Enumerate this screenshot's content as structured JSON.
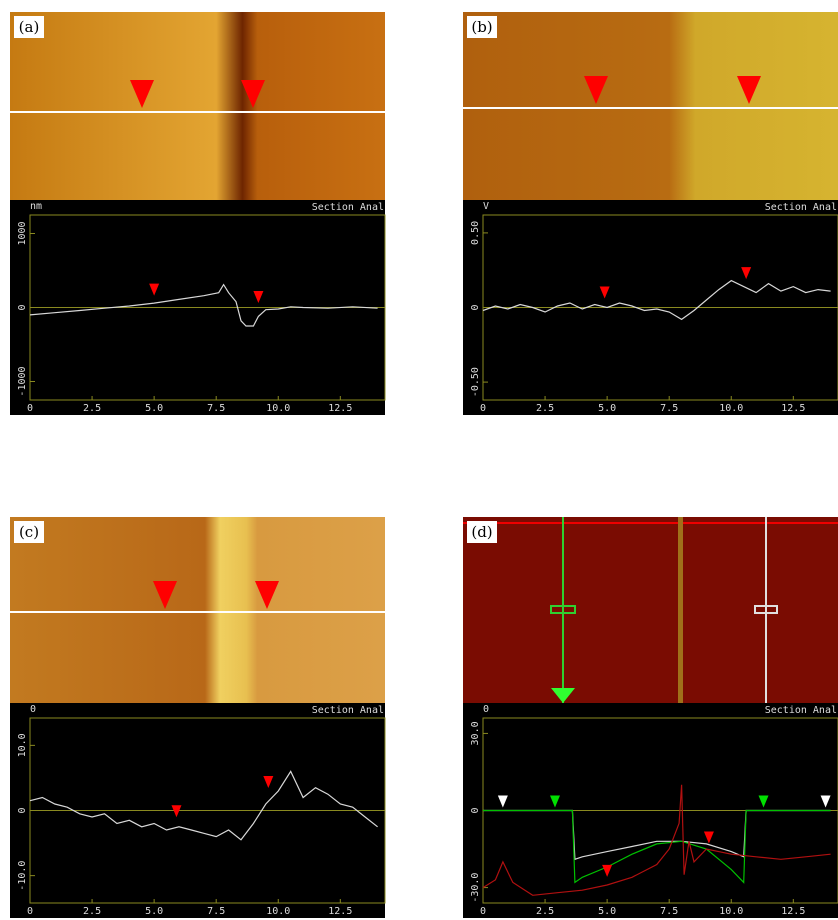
{
  "chart_data": [
    {
      "type": "line",
      "label": "(a)",
      "unit": "nm",
      "header": "Section Anal",
      "xlim": [
        0,
        14.3
      ],
      "ylim": [
        -1250,
        1250
      ],
      "xticks": [
        0,
        2.5,
        {
          "value": 5,
          "label": "5.0"
        },
        7.5,
        {
          "value": 10,
          "label": "10.0"
        },
        12.5
      ],
      "yticks": [
        -1000,
        0,
        1000
      ],
      "series": [
        {
          "color": "#d8d8d8",
          "x": [
            0,
            1,
            2,
            3,
            4,
            5,
            6,
            7,
            7.6,
            7.8,
            8.0,
            8.3,
            8.5,
            8.7,
            9.0,
            9.2,
            9.5,
            10,
            10.5,
            11,
            12,
            13,
            14
          ],
          "values": [
            -100,
            -70,
            -40,
            -10,
            20,
            60,
            110,
            160,
            200,
            310,
            200,
            80,
            -180,
            -250,
            -250,
            -120,
            -30,
            -20,
            10,
            0,
            -10,
            10,
            -10
          ]
        }
      ],
      "markers": [
        {
          "x": 5.0,
          "y": 120,
          "color": "#ff0000"
        },
        {
          "x": 9.2,
          "y": 20,
          "color": "#ff0000"
        }
      ]
    },
    {
      "type": "line",
      "label": "(b)",
      "unit": "V",
      "header": "Section Anal",
      "xlim": [
        0,
        14.3
      ],
      "ylim": [
        -0.62,
        0.62
      ],
      "xticks": [
        0,
        2.5,
        {
          "value": 5,
          "label": "5.0"
        },
        7.5,
        {
          "value": 10,
          "label": "10.0"
        },
        12.5
      ],
      "yticks": [
        {
          "value": -0.5,
          "label": "-0.50"
        },
        0,
        {
          "value": 0.5,
          "label": "0.50"
        }
      ],
      "series": [
        {
          "color": "#d8d8d8",
          "x": [
            0,
            0.5,
            1,
            1.5,
            2,
            2.5,
            3,
            3.5,
            4,
            4.5,
            5,
            5.5,
            6,
            6.5,
            7,
            7.5,
            8,
            8.5,
            9,
            9.5,
            10,
            10.5,
            11,
            11.5,
            12,
            12.5,
            13,
            13.5,
            14
          ],
          "values": [
            -0.02,
            0.01,
            -0.01,
            0.02,
            0,
            -0.03,
            0.01,
            0.03,
            -0.01,
            0.02,
            0,
            0.03,
            0.01,
            -0.02,
            -0.01,
            -0.03,
            -0.08,
            -0.02,
            0.05,
            0.12,
            0.18,
            0.14,
            0.1,
            0.16,
            0.11,
            0.14,
            0.1,
            0.12,
            0.11
          ]
        }
      ],
      "markers": [
        {
          "x": 4.9,
          "y": 0.04,
          "color": "#ff0000"
        },
        {
          "x": 10.6,
          "y": 0.17,
          "color": "#ff0000"
        }
      ]
    },
    {
      "type": "line",
      "label": "(c)",
      "unit": "0",
      "header": "Section Anal",
      "xlim": [
        0,
        14.3
      ],
      "ylim": [
        -14.2,
        14.2
      ],
      "xticks": [
        0,
        2.5,
        {
          "value": 5,
          "label": "5.0"
        },
        7.5,
        {
          "value": 10,
          "label": "10.0"
        },
        12.5
      ],
      "yticks": [
        {
          "value": -10,
          "label": "-10.0"
        },
        0,
        {
          "value": 10,
          "label": "10.0"
        }
      ],
      "series": [
        {
          "color": "#d8d8d8",
          "x": [
            0,
            0.5,
            1,
            1.5,
            2,
            2.5,
            3,
            3.5,
            4,
            4.5,
            5,
            5.5,
            6,
            6.5,
            7,
            7.5,
            8,
            8.5,
            9,
            9.5,
            10,
            10.5,
            11,
            11.5,
            12,
            12.5,
            13,
            13.5,
            14
          ],
          "values": [
            1.5,
            2,
            1,
            0.5,
            -0.5,
            -1,
            -0.5,
            -2,
            -1.5,
            -2.5,
            -2,
            -3,
            -2.5,
            -3,
            -3.5,
            -4,
            -3,
            -4.5,
            -2,
            1,
            3,
            6,
            2,
            3.5,
            2.5,
            1,
            0.5,
            -1,
            -2.5
          ]
        }
      ],
      "markers": [
        {
          "x": 5.9,
          "y": -1.5,
          "color": "#ff0000"
        },
        {
          "x": 9.6,
          "y": 3,
          "color": "#ff0000"
        }
      ]
    },
    {
      "type": "line",
      "label": "(d)",
      "unit": "0",
      "header": "Section Anal",
      "xlim": [
        0,
        14.3
      ],
      "ylim": [
        -36,
        36
      ],
      "xticks": [
        0,
        2.5,
        {
          "value": 5,
          "label": "5.0"
        },
        7.5,
        {
          "value": 10,
          "label": "10.0"
        },
        12.5
      ],
      "yticks": [
        {
          "value": -30,
          "label": "-30.0"
        },
        0,
        {
          "value": 30,
          "label": "30.0"
        }
      ],
      "series": [
        {
          "color": "#d8d8d8",
          "x": [
            0,
            0.8,
            1.5,
            2.5,
            3,
            3.6,
            3.7,
            4,
            5,
            6,
            7,
            8,
            9,
            10,
            10.5,
            10.6,
            11,
            12,
            13,
            14
          ],
          "values": [
            0,
            0,
            0,
            0,
            0,
            0,
            -19,
            -18,
            -16,
            -14,
            -12,
            -12,
            -13,
            -16,
            -18,
            0,
            0,
            0,
            0,
            0
          ]
        },
        {
          "color": "#00c000",
          "x": [
            0,
            0.8,
            1.5,
            2.5,
            3,
            3.6,
            3.7,
            4,
            5,
            6,
            7,
            8,
            9,
            10,
            10.5,
            10.6,
            11,
            12,
            13,
            14
          ],
          "values": [
            0,
            0,
            0,
            0,
            0,
            0,
            -28,
            -26,
            -22,
            -17,
            -13,
            -12,
            -15,
            -23,
            -28,
            0,
            0,
            0,
            0,
            0
          ]
        },
        {
          "color": "#b01010",
          "x": [
            0,
            0.5,
            0.8,
            1.2,
            2,
            3,
            4,
            5,
            6,
            7,
            7.5,
            7.9,
            8.0,
            8.1,
            8.3,
            8.5,
            9,
            10,
            11,
            12,
            13,
            14
          ],
          "values": [
            -30,
            -27,
            -20,
            -28,
            -33,
            -32,
            -31,
            -29,
            -26,
            -21,
            -15,
            -5,
            10,
            -25,
            -12,
            -20,
            -15,
            -17,
            -18,
            -19,
            -18,
            -17
          ]
        }
      ],
      "markers": [
        {
          "x": 0.8,
          "y": 0,
          "color": "#ffffff"
        },
        {
          "x": 2.9,
          "y": 0,
          "color": "#00e000"
        },
        {
          "x": 11.3,
          "y": 0,
          "color": "#00e000"
        },
        {
          "x": 13.8,
          "y": 0,
          "color": "#ffffff"
        },
        {
          "x": 5.0,
          "y": -27,
          "color": "#ff0000"
        },
        {
          "x": 9.1,
          "y": -14,
          "color": "#ff0000"
        }
      ]
    }
  ]
}
